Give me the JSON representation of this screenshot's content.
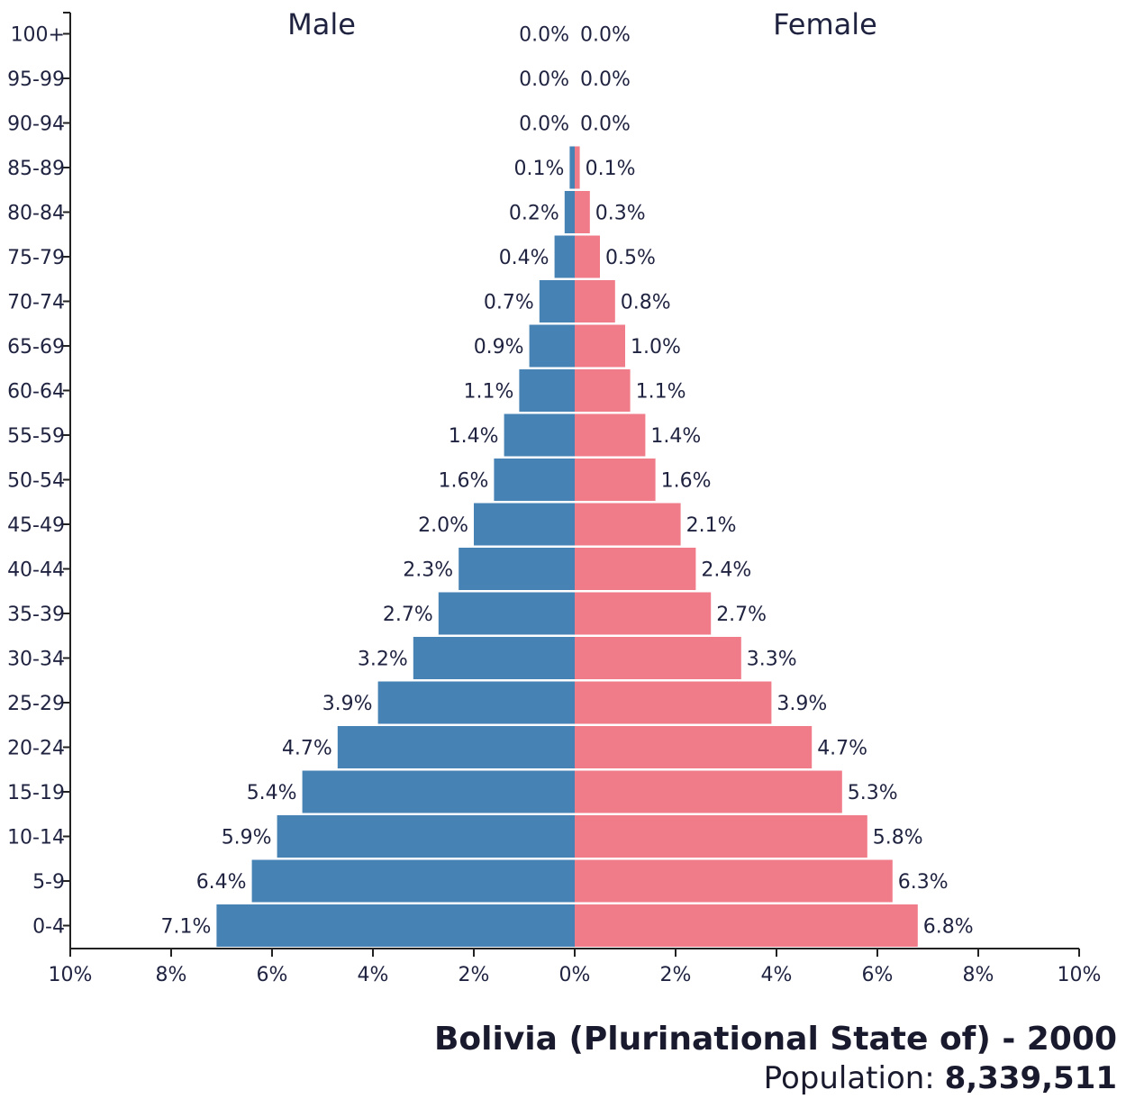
{
  "colors": {
    "male": "#4682b4",
    "female": "#f07b89",
    "text": "#1f2340",
    "axis": "#222222"
  },
  "chart_data": {
    "type": "bar",
    "orientation": "horizontal-pyramid",
    "categories": [
      "0-4",
      "5-9",
      "10-14",
      "15-19",
      "20-24",
      "25-29",
      "30-34",
      "35-39",
      "40-44",
      "45-49",
      "50-54",
      "55-59",
      "60-64",
      "65-69",
      "70-74",
      "75-79",
      "80-84",
      "85-89",
      "90-94",
      "95-99",
      "100+"
    ],
    "series": [
      {
        "name": "Male",
        "values": [
          7.1,
          6.4,
          5.9,
          5.4,
          4.7,
          3.9,
          3.2,
          2.7,
          2.3,
          2.0,
          1.6,
          1.4,
          1.1,
          0.9,
          0.7,
          0.4,
          0.2,
          0.1,
          0.0,
          0.0,
          0.0
        ],
        "labels": [
          "7.1%",
          "6.4%",
          "5.9%",
          "5.4%",
          "4.7%",
          "3.9%",
          "3.2%",
          "2.7%",
          "2.3%",
          "2.0%",
          "1.6%",
          "1.4%",
          "1.1%",
          "0.9%",
          "0.7%",
          "0.4%",
          "0.2%",
          "0.1%",
          "0.0%",
          "0.0%",
          "0.0%"
        ]
      },
      {
        "name": "Female",
        "values": [
          6.8,
          6.3,
          5.8,
          5.3,
          4.7,
          3.9,
          3.3,
          2.7,
          2.4,
          2.1,
          1.6,
          1.4,
          1.1,
          1.0,
          0.8,
          0.5,
          0.3,
          0.1,
          0.0,
          0.0,
          0.0
        ],
        "labels": [
          "6.8%",
          "6.3%",
          "5.8%",
          "5.3%",
          "4.7%",
          "3.9%",
          "3.3%",
          "2.7%",
          "2.4%",
          "2.1%",
          "1.6%",
          "1.4%",
          "1.1%",
          "1.0%",
          "0.8%",
          "0.5%",
          "0.3%",
          "0.1%",
          "0.0%",
          "0.0%",
          "0.0%"
        ]
      }
    ],
    "xlim": [
      -10,
      10
    ],
    "xticks": [
      -10,
      -8,
      -6,
      -4,
      -2,
      0,
      2,
      4,
      6,
      8,
      10
    ],
    "xtick_labels": [
      "10%",
      "8%",
      "6%",
      "4%",
      "2%",
      "0%",
      "2%",
      "4%",
      "6%",
      "8%",
      "10%"
    ],
    "title": "Bolivia (Plurinational State of) - 2000",
    "population_label": "Population:",
    "population_value": "8,339,511",
    "grid": false
  }
}
